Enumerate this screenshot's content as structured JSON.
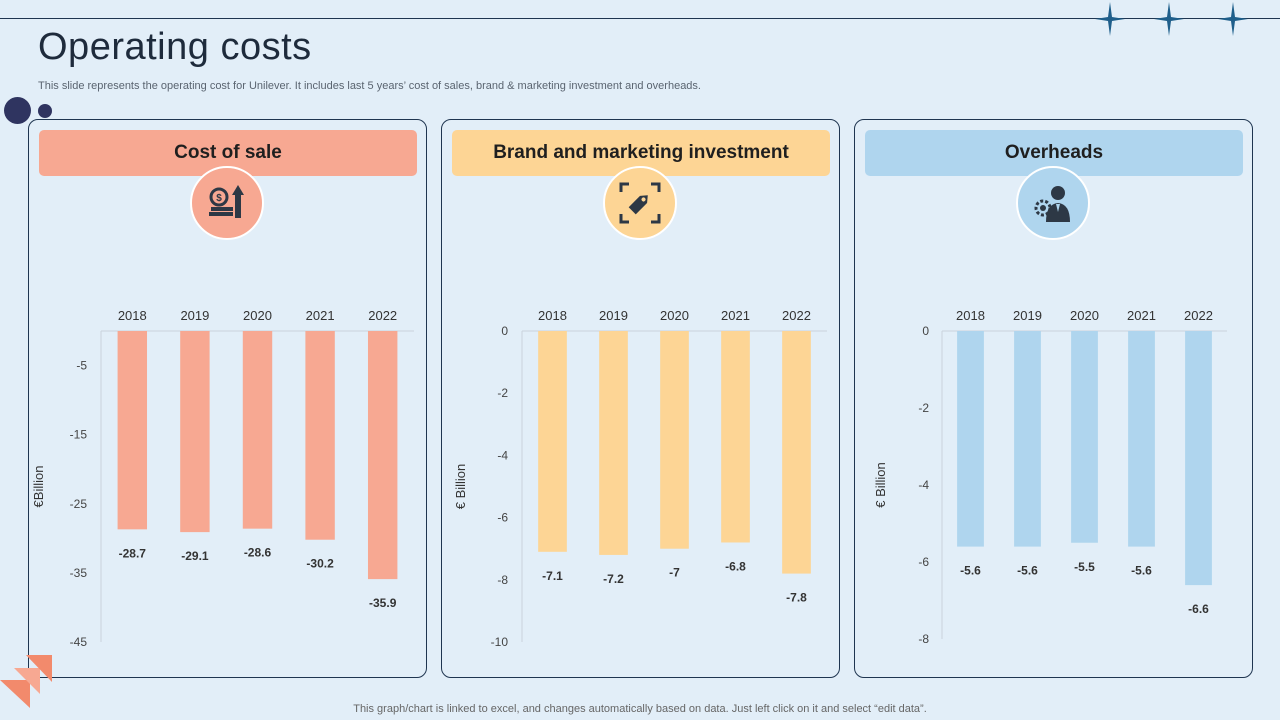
{
  "header": {
    "title": "Operating costs",
    "subtitle": "This slide represents the operating cost for Unilever. It includes last 5 years’ cost of sales, brand & marketing investment and overheads."
  },
  "footer": {
    "note": "This graph/chart is linked to excel,  and changes automatically based on data. Just left click on it and select “edit data”."
  },
  "colors": {
    "cost": "#f7a892",
    "brand": "#fdd595",
    "overheads": "#afd5ee",
    "icon_dark": "#2d3845"
  },
  "panels": [
    {
      "key": "cost",
      "title": "Cost of sale",
      "icon": "money-growth-icon"
    },
    {
      "key": "brand",
      "title": "Brand and marketing investment",
      "icon": "price-tag-expand-icon"
    },
    {
      "key": "overheads",
      "title": "Overheads",
      "icon": "businessman-gear-icon"
    }
  ],
  "chart_data": [
    {
      "type": "bar",
      "title": "Cost of sale",
      "categories": [
        "2018",
        "2019",
        "2020",
        "2021",
        "2022"
      ],
      "values": [
        -28.7,
        -29.1,
        -28.6,
        -30.2,
        -35.9
      ],
      "value_labels": [
        "-28.7",
        "-29.1",
        "-28.6",
        "-30.2",
        "-35.9"
      ],
      "ylabel": "€Billion",
      "ylim": [
        -45,
        0
      ],
      "yticks": [
        -5,
        -15,
        -25,
        -35,
        -45
      ],
      "ytick_labels": [
        "-5",
        "-15",
        "-25",
        "-35",
        "-45"
      ],
      "color": "#f7a892"
    },
    {
      "type": "bar",
      "title": "Brand and marketing investment",
      "categories": [
        "2018",
        "2019",
        "2020",
        "2021",
        "2022"
      ],
      "values": [
        -7.1,
        -7.2,
        -7.0,
        -6.8,
        -7.8
      ],
      "value_labels": [
        "-7.1",
        "-7.2",
        "-7",
        "-6.8",
        "-7.8"
      ],
      "ylabel": "€ Billion",
      "ylim": [
        -10,
        0
      ],
      "yticks": [
        0,
        -2,
        -4,
        -6,
        -8,
        -10
      ],
      "ytick_labels": [
        "0",
        "-2",
        "-4",
        "-6",
        "-8",
        "-10"
      ],
      "color": "#fdd595"
    },
    {
      "type": "bar",
      "title": "Overheads",
      "categories": [
        "2018",
        "2019",
        "2020",
        "2021",
        "2022"
      ],
      "values": [
        -5.6,
        -5.6,
        -5.5,
        -5.6,
        -6.6
      ],
      "value_labels": [
        "-5.6",
        "-5.6",
        "-5.5",
        "-5.6",
        "-6.6"
      ],
      "ylabel": "€ Billion",
      "ylim": [
        -8,
        0
      ],
      "yticks": [
        0,
        -2,
        -4,
        -6,
        -8
      ],
      "ytick_labels": [
        "0",
        "-2",
        "-4",
        "-6",
        "-8"
      ],
      "color": "#afd5ee"
    }
  ]
}
